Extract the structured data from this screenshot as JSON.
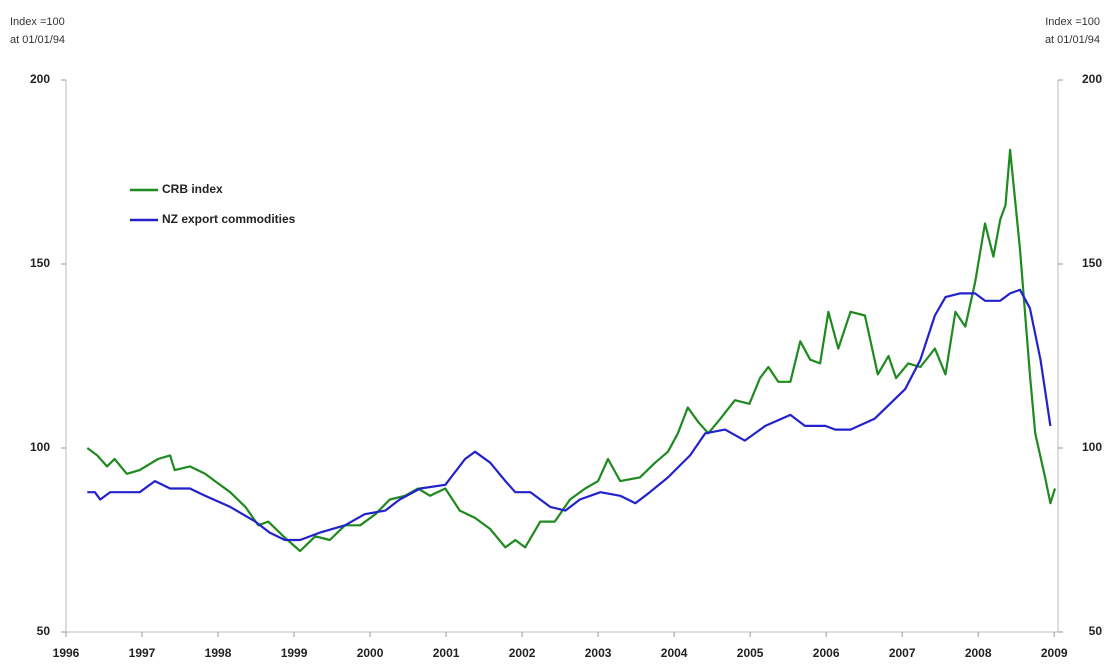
{
  "chart_data": {
    "type": "line",
    "y_label_lines": [
      "Index =100",
      "at 01/01/94"
    ],
    "y2_label_lines": [
      "Index =100",
      "at 01/01/94"
    ],
    "xlim": [
      1996,
      2009.05
    ],
    "xticks": [
      1996,
      1997,
      1998,
      1999,
      2000,
      2001,
      2002,
      2003,
      2004,
      2005,
      2006,
      2007,
      2008,
      2009
    ],
    "ylim": [
      50,
      200
    ],
    "yticks": [
      50,
      100,
      150,
      200
    ],
    "y2lim": [
      50,
      200
    ],
    "y2ticks": [
      50,
      100,
      150,
      200
    ],
    "legend": "upper left",
    "series": [
      {
        "name": "CRB index",
        "color": "#1f8a1f",
        "x": [
          1996.28,
          1996.41,
          1996.54,
          1996.64,
          1996.8,
          1996.97,
          1997.21,
          1997.37,
          1997.43,
          1997.63,
          1997.83,
          1997.96,
          1998.16,
          1998.36,
          1998.53,
          1998.66,
          1998.86,
          1999.08,
          1999.28,
          1999.47,
          1999.67,
          1999.87,
          2000.07,
          2000.26,
          2000.46,
          2000.63,
          2000.79,
          2000.99,
          2001.18,
          2001.38,
          2001.58,
          2001.78,
          2001.91,
          2002.04,
          2002.24,
          2002.43,
          2002.63,
          2002.83,
          2003.0,
          2003.13,
          2003.29,
          2003.55,
          2003.75,
          2003.92,
          2004.05,
          2004.18,
          2004.32,
          2004.45,
          2004.61,
          2004.8,
          2004.99,
          2005.13,
          2005.24,
          2005.37,
          2005.53,
          2005.66,
          2005.79,
          2005.92,
          2006.03,
          2006.16,
          2006.32,
          2006.51,
          2006.68,
          2006.82,
          2006.92,
          2007.08,
          2007.24,
          2007.43,
          2007.57,
          2007.7,
          2007.83,
          2007.96,
          2008.09,
          2008.2,
          2008.29,
          2008.36,
          2008.42,
          2008.55,
          2008.68,
          2008.75,
          2008.88,
          2008.95,
          2009.01
        ],
        "values": [
          100,
          98,
          95,
          97,
          93,
          94,
          97,
          98,
          94,
          95,
          93,
          91,
          88,
          84,
          79,
          80,
          76,
          72,
          76,
          75,
          79,
          79,
          82,
          86,
          87,
          89,
          87,
          89,
          83,
          81,
          78,
          73,
          75,
          73,
          80,
          80,
          86,
          89,
          91,
          97,
          91,
          92,
          96,
          99,
          104,
          111,
          107,
          104,
          108,
          113,
          112,
          119,
          122,
          118,
          118,
          129,
          124,
          123,
          137,
          127,
          137,
          136,
          120,
          125,
          119,
          123,
          122,
          127,
          120,
          137,
          133,
          145,
          161,
          152,
          162,
          166,
          181,
          154,
          120,
          104,
          92,
          85,
          89
        ]
      },
      {
        "name": "NZ export commodities",
        "color": "#2222cc",
        "x": [
          1996.28,
          1996.38,
          1996.45,
          1996.58,
          1996.84,
          1996.97,
          1997.17,
          1997.37,
          1997.63,
          1997.83,
          1998.16,
          1998.49,
          1998.68,
          1998.88,
          1999.08,
          1999.34,
          1999.67,
          1999.93,
          2000.2,
          2000.39,
          2000.66,
          2000.99,
          2001.25,
          2001.38,
          2001.58,
          2001.78,
          2001.91,
          2002.11,
          2002.37,
          2002.57,
          2002.76,
          2003.03,
          2003.29,
          2003.49,
          2003.68,
          2003.92,
          2004.21,
          2004.41,
          2004.67,
          2004.93,
          2005.2,
          2005.53,
          2005.72,
          2005.99,
          2006.12,
          2006.32,
          2006.64,
          2006.84,
          2007.04,
          2007.24,
          2007.43,
          2007.57,
          2007.76,
          2007.96,
          2008.09,
          2008.29,
          2008.42,
          2008.55,
          2008.68,
          2008.82,
          2008.95
        ],
        "values": [
          88,
          88,
          86,
          88,
          88,
          88,
          91,
          89,
          89,
          87,
          84,
          80,
          77,
          75,
          75,
          77,
          79,
          82,
          83,
          86,
          89,
          90,
          97,
          99,
          96,
          91,
          88,
          88,
          84,
          83,
          86,
          88,
          87,
          85,
          88,
          92,
          98,
          104,
          105,
          102,
          106,
          109,
          106,
          106,
          105,
          105,
          108,
          112,
          116,
          124,
          136,
          141,
          142,
          142,
          140,
          140,
          142,
          143,
          138,
          124,
          106
        ]
      }
    ]
  }
}
